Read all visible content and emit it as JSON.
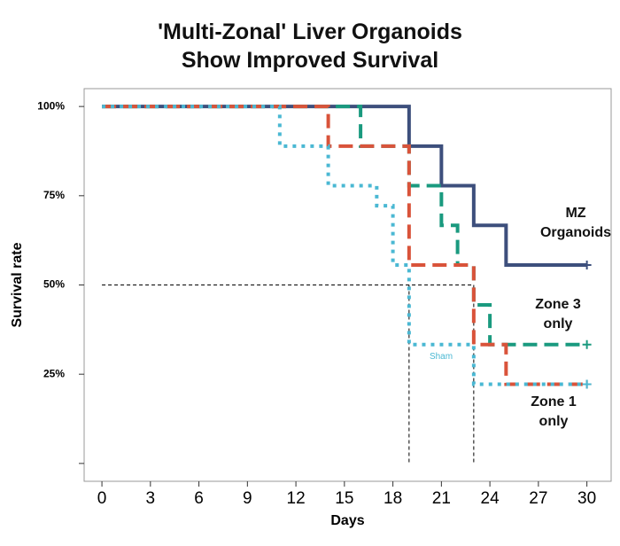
{
  "chart_data": {
    "type": "step",
    "title": "'Multi-Zonal' Liver Organoids Show Improved Survival",
    "x_label": "Days",
    "y_label": "Survival rate",
    "xlim": [
      -1.1,
      31.5
    ],
    "xticks": [
      0,
      3,
      6,
      9,
      12,
      15,
      18,
      21,
      24,
      27,
      30
    ],
    "ylim": [
      -5,
      105
    ],
    "yticks": [
      {
        "value": 0,
        "label": null
      },
      {
        "value": 25,
        "label": "25%"
      },
      {
        "value": 50,
        "label": "50%"
      },
      {
        "value": 75,
        "label": "75%"
      },
      {
        "value": 100,
        "label": "100%"
      }
    ],
    "reference_level": 50,
    "reference_x": [
      19,
      23
    ],
    "series": [
      {
        "name": "MZ Organoids",
        "color": "#3d4f7c",
        "style": "solid",
        "x": [
          0,
          19,
          21,
          23,
          25,
          30
        ],
        "values": [
          100,
          88.9,
          77.8,
          66.7,
          55.6,
          55.6
        ]
      },
      {
        "name": "Zone 3 only",
        "color": "#1a9a7f",
        "style": "dashed",
        "x": [
          0,
          16,
          19,
          21,
          22,
          23,
          24,
          30
        ],
        "values": [
          100,
          88.9,
          77.8,
          66.7,
          55.6,
          44.4,
          33.3,
          33.3
        ]
      },
      {
        "name": "Zone 1 only",
        "color": "#d9533a",
        "style": "dashed",
        "x": [
          0,
          14,
          19,
          23,
          25,
          30
        ],
        "values": [
          100,
          88.9,
          55.6,
          33.3,
          22.2,
          22.2
        ]
      },
      {
        "name": "Sham",
        "color": "#4ab8d3",
        "style": "dotted",
        "x": [
          0,
          11,
          14,
          17,
          18,
          19,
          23,
          30
        ],
        "values": [
          100,
          88.9,
          77.8,
          72.2,
          55.6,
          33.3,
          22.2,
          22.2
        ]
      }
    ]
  }
}
